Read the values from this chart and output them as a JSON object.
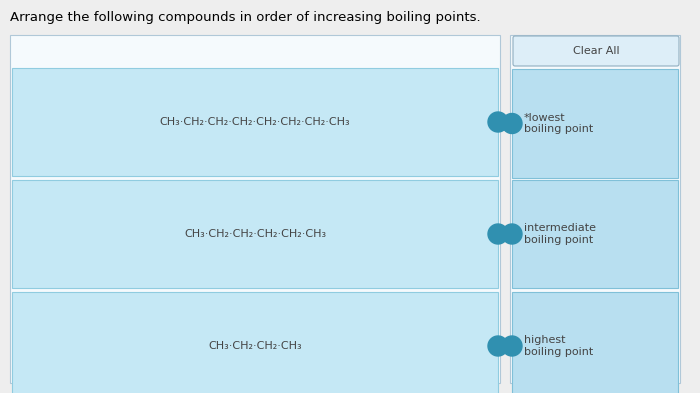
{
  "title": "Arrange the following compounds in order of increasing boiling points.",
  "title_fontsize": 9.5,
  "background_color": "#e8e8e8",
  "page_bg": "#eeeeee",
  "left_boxes": [
    {
      "label": "CH₃·CH₂·CH₂·CH₂·CH₂·CH₂·CH₂·CH₃"
    },
    {
      "label": "CH₃·CH₂·CH₂·CH₂·CH₂·CH₃"
    },
    {
      "label": "CH₃·CH₂·CH₂·CH₃"
    }
  ],
  "right_boxes": [
    {
      "label": "*lowest\nboiling point"
    },
    {
      "label": "intermediate\nboiling point"
    },
    {
      "label": "highest\nboiling point"
    }
  ],
  "clear_all_label": "Clear All",
  "left_box_bg": "#c5e8f5",
  "left_box_border": "#90cce0",
  "right_box_bg": "#b8dff0",
  "right_box_border": "#80c0d8",
  "outer_bg": "#f0f8ff",
  "outer_border": "#b0c8d8",
  "connector_color": "#3090b0",
  "clear_btn_bg": "#ddeef8",
  "clear_btn_border": "#90aec0",
  "label_fontsize": 8.0,
  "clear_fontsize": 8.0,
  "text_color": "#444444"
}
